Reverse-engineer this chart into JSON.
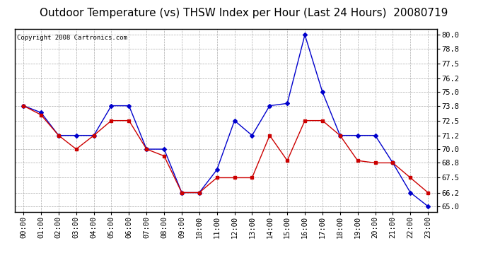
{
  "title": "Outdoor Temperature (vs) THSW Index per Hour (Last 24 Hours)  20080719",
  "copyright": "Copyright 2008 Cartronics.com",
  "hours": [
    "00:00",
    "01:00",
    "02:00",
    "03:00",
    "04:00",
    "05:00",
    "06:00",
    "07:00",
    "08:00",
    "09:00",
    "10:00",
    "11:00",
    "12:00",
    "13:00",
    "14:00",
    "15:00",
    "16:00",
    "17:00",
    "18:00",
    "19:00",
    "20:00",
    "21:00",
    "22:00",
    "23:00"
  ],
  "temp_red": [
    73.8,
    73.0,
    71.2,
    70.0,
    71.2,
    72.5,
    72.5,
    70.0,
    69.4,
    66.2,
    66.2,
    67.5,
    67.5,
    67.5,
    71.2,
    69.0,
    72.5,
    72.5,
    71.2,
    69.0,
    68.8,
    68.8,
    67.5,
    66.2
  ],
  "thsw_blue": [
    73.8,
    73.2,
    71.2,
    71.2,
    71.2,
    73.8,
    73.8,
    70.0,
    70.0,
    66.2,
    66.2,
    68.2,
    72.5,
    71.2,
    73.8,
    74.0,
    80.0,
    75.0,
    71.2,
    71.2,
    71.2,
    68.8,
    66.2,
    65.0
  ],
  "y_ticks": [
    65.0,
    66.2,
    67.5,
    68.8,
    70.0,
    71.2,
    72.5,
    73.8,
    75.0,
    76.2,
    77.5,
    78.8,
    80.0
  ],
  "ylim_min": 64.5,
  "ylim_max": 80.5,
  "bg_color": "#ffffff",
  "plot_bg_color": "#ffffff",
  "grid_color": "#aaaaaa",
  "red_color": "#cc0000",
  "blue_color": "#0000cc",
  "title_fontsize": 11,
  "copyright_fontsize": 6.5,
  "tick_fontsize": 7.5
}
